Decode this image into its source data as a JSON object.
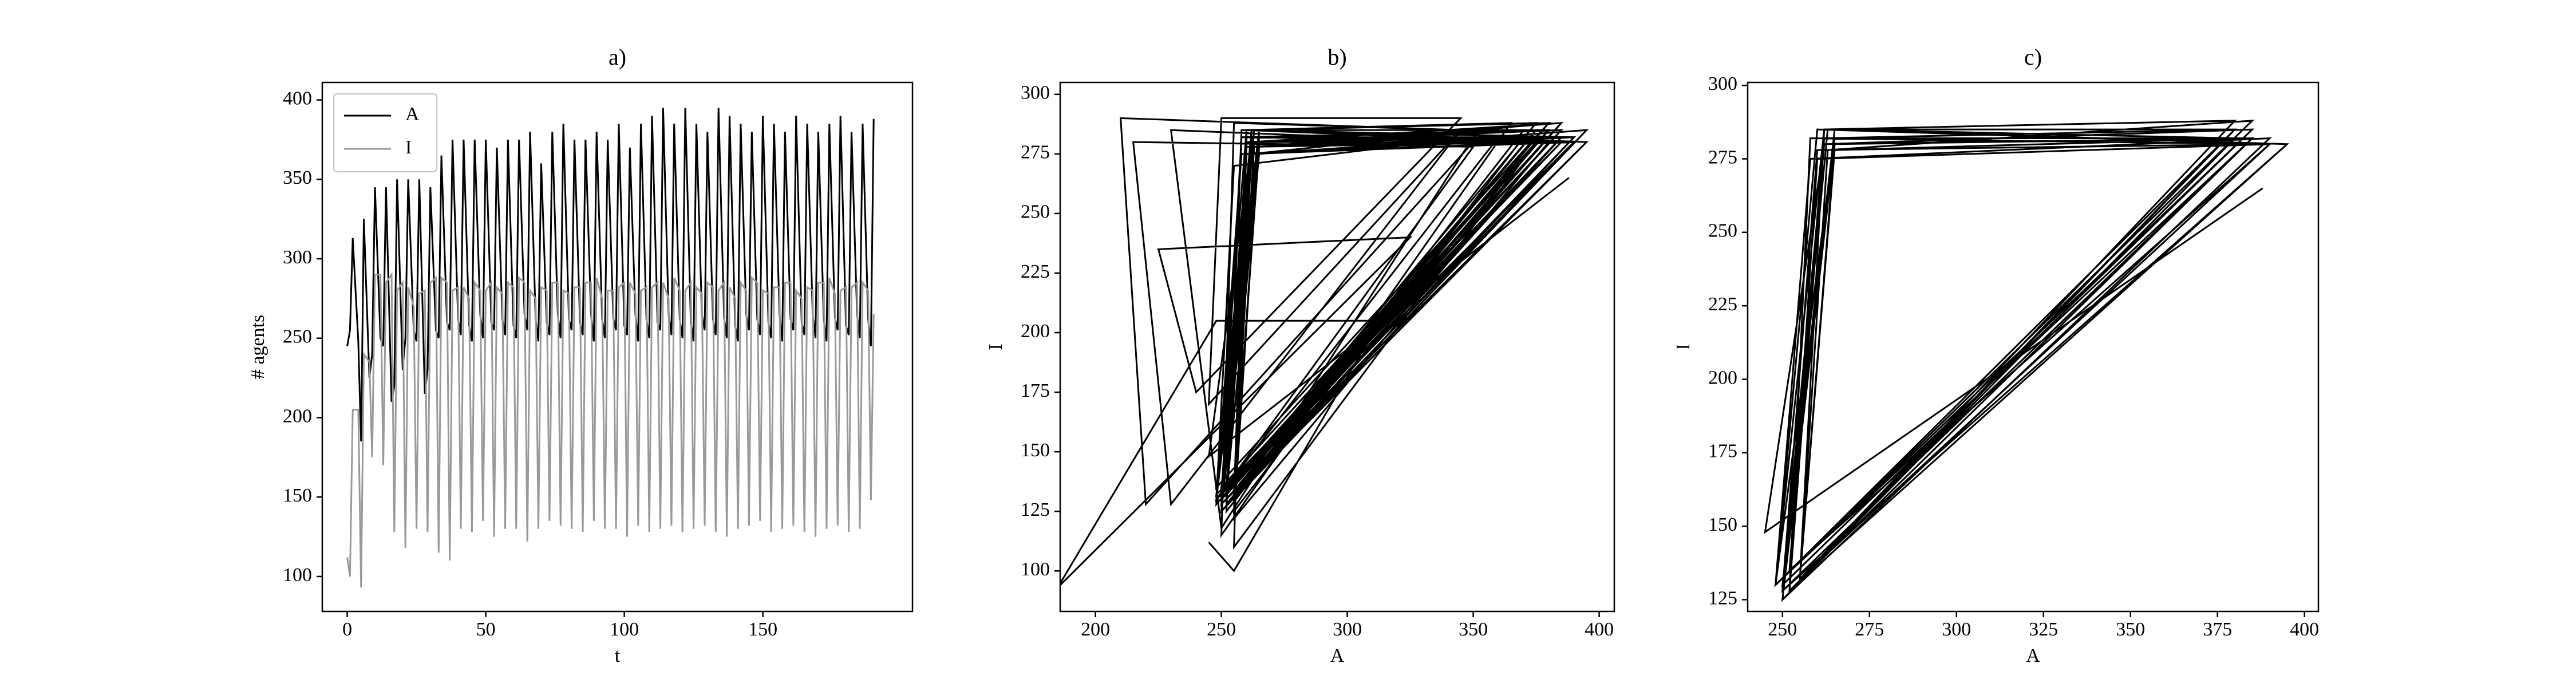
{
  "chart_data": [
    {
      "type": "line",
      "title": "a)",
      "xlabel": "t",
      "ylabel": "# agents",
      "x": [
        0,
        1,
        2,
        4,
        5,
        6,
        8,
        9,
        10,
        12,
        13,
        14,
        16,
        17,
        18,
        20,
        21,
        22,
        24,
        25,
        26,
        28,
        29,
        30,
        32,
        33,
        34,
        36,
        37,
        38,
        40,
        41,
        42,
        44,
        45,
        46,
        48,
        49,
        50,
        52,
        53,
        54,
        56,
        57,
        58,
        60,
        61,
        62,
        64,
        65,
        66,
        68,
        69,
        70,
        72,
        73,
        74,
        76,
        77,
        78,
        80,
        81,
        82,
        84,
        85,
        86,
        88,
        89,
        90,
        92,
        93,
        94,
        96,
        97,
        98,
        100,
        101,
        102,
        104,
        105,
        106,
        108,
        109,
        110,
        112,
        113,
        114,
        116,
        117,
        118,
        120,
        121,
        122,
        124,
        125,
        126,
        128,
        129,
        130,
        132,
        133,
        134,
        136,
        137,
        138,
        140,
        141,
        142,
        144,
        145,
        146,
        148,
        149,
        150,
        152,
        153,
        154,
        156,
        157,
        158,
        160,
        161,
        162,
        164,
        165,
        166,
        168,
        169,
        170,
        172,
        173,
        174,
        176,
        177,
        178,
        180,
        181,
        182,
        184,
        185,
        186,
        188,
        189,
        190
      ],
      "series": [
        {
          "name": "A",
          "color": "#000000",
          "values": [
            245,
            255,
            313,
            248,
            185,
            325,
            225,
            240,
            345,
            250,
            245,
            345,
            210,
            220,
            350,
            230,
            250,
            350,
            255,
            248,
            350,
            215,
            230,
            345,
            255,
            250,
            365,
            260,
            255,
            375,
            262,
            252,
            375,
            258,
            248,
            375,
            265,
            250,
            375,
            260,
            255,
            370,
            262,
            252,
            375,
            258,
            250,
            375,
            265,
            255,
            380,
            262,
            248,
            360,
            260,
            252,
            380,
            265,
            250,
            385,
            262,
            255,
            375,
            260,
            252,
            375,
            265,
            248,
            380,
            262,
            250,
            375,
            263,
            255,
            385,
            258,
            252,
            370,
            265,
            248,
            385,
            262,
            250,
            390,
            260,
            255,
            395,
            265,
            252,
            385,
            262,
            250,
            395,
            260,
            248,
            385,
            265,
            255,
            380,
            262,
            252,
            395,
            263,
            250,
            390,
            258,
            248,
            385,
            265,
            255,
            380,
            262,
            252,
            390,
            260,
            250,
            385,
            265,
            248,
            380,
            262,
            255,
            390,
            260,
            252,
            385,
            265,
            250,
            380,
            262,
            248,
            385,
            263,
            255,
            390,
            258,
            252,
            380,
            265,
            250,
            385,
            262,
            245,
            388
          ]
        },
        {
          "name": "I",
          "color": "#999999",
          "values": [
            112,
            100,
            205,
            205,
            93,
            240,
            235,
            175,
            290,
            290,
            170,
            285,
            290,
            128,
            280,
            285,
            118,
            282,
            270,
            130,
            278,
            280,
            128,
            285,
            288,
            115,
            288,
            285,
            110,
            280,
            282,
            130,
            282,
            275,
            128,
            285,
            280,
            135,
            280,
            285,
            125,
            282,
            278,
            130,
            285,
            282,
            130,
            288,
            285,
            122,
            280,
            275,
            130,
            282,
            280,
            135,
            285,
            285,
            132,
            280,
            278,
            130,
            282,
            282,
            128,
            285,
            285,
            135,
            288,
            275,
            130,
            280,
            280,
            130,
            282,
            285,
            125,
            285,
            278,
            132,
            280,
            282,
            128,
            282,
            285,
            130,
            285,
            275,
            132,
            288,
            280,
            128,
            280,
            285,
            130,
            282,
            278,
            132,
            285,
            282,
            128,
            280,
            285,
            125,
            282,
            275,
            130,
            285,
            280,
            132,
            288,
            285,
            135,
            280,
            278,
            128,
            282,
            282,
            130,
            285,
            285,
            132,
            280,
            275,
            128,
            282,
            280,
            125,
            285,
            285,
            130,
            288,
            278,
            132,
            280,
            282,
            128,
            282,
            285,
            130,
            285,
            280,
            148,
            265
          ]
        }
      ],
      "xlim": [
        -9,
        204
      ],
      "ylim": [
        78,
        411
      ],
      "xticks": [
        0,
        50,
        100,
        150
      ],
      "yticks": [
        100,
        150,
        200,
        250,
        300,
        350,
        400
      ],
      "legend": "upper left"
    },
    {
      "type": "phase",
      "title": "b)",
      "xlabel": "A",
      "ylabel": "I",
      "color": "#000000",
      "x": [
        245,
        255,
        313,
        248,
        185,
        325,
        225,
        240,
        345,
        250,
        245,
        345,
        210,
        220,
        350,
        230,
        250,
        350,
        255,
        248,
        350,
        215,
        230,
        345,
        255,
        250,
        365,
        260,
        255,
        375,
        262,
        252,
        375,
        258,
        248,
        375,
        265,
        250,
        375,
        260,
        255,
        370,
        262,
        252,
        375,
        258,
        250,
        375,
        265,
        255,
        380,
        262,
        248,
        360,
        260,
        252,
        380,
        265,
        250,
        385,
        262,
        255,
        375,
        260,
        252,
        375,
        265,
        248,
        380,
        262,
        250,
        375,
        263,
        255,
        385,
        258,
        252,
        370,
        265,
        248,
        385,
        262,
        250,
        390,
        260,
        255,
        395,
        265,
        252,
        385,
        262,
        250,
        395,
        260,
        248,
        385,
        265,
        255,
        380,
        262,
        252,
        395,
        263,
        250,
        390,
        258,
        248,
        385,
        265,
        255,
        380,
        262,
        252,
        390,
        260,
        250,
        385,
        265,
        248,
        380,
        262,
        255,
        390,
        260,
        252,
        385,
        265,
        250,
        380,
        262,
        248,
        385,
        263,
        255,
        390,
        258,
        252,
        380,
        265,
        250,
        385,
        262,
        245,
        388
      ],
      "y": [
        112,
        100,
        205,
        205,
        93,
        240,
        235,
        175,
        290,
        290,
        170,
        285,
        290,
        128,
        280,
        285,
        118,
        282,
        270,
        130,
        278,
        280,
        128,
        285,
        288,
        115,
        288,
        285,
        110,
        280,
        282,
        130,
        282,
        275,
        128,
        285,
        280,
        135,
        280,
        285,
        125,
        282,
        278,
        130,
        285,
        282,
        130,
        288,
        285,
        122,
        280,
        275,
        130,
        282,
        280,
        135,
        285,
        285,
        132,
        280,
        278,
        130,
        282,
        282,
        128,
        285,
        285,
        135,
        288,
        275,
        130,
        280,
        280,
        130,
        282,
        285,
        125,
        285,
        278,
        132,
        280,
        282,
        128,
        282,
        285,
        130,
        285,
        275,
        132,
        288,
        280,
        128,
        280,
        285,
        130,
        282,
        278,
        132,
        285,
        282,
        128,
        280,
        285,
        125,
        282,
        275,
        130,
        285,
        280,
        132,
        288,
        285,
        135,
        280,
        278,
        128,
        282,
        282,
        130,
        285,
        285,
        132,
        280,
        275,
        128,
        282,
        280,
        125,
        285,
        285,
        130,
        288,
        278,
        132,
        280,
        282,
        128,
        282,
        285,
        130,
        285,
        280,
        148,
        265
      ],
      "xlim": [
        186,
        406
      ],
      "ylim": [
        83,
        305
      ],
      "xticks": [
        200,
        250,
        300,
        350,
        400
      ],
      "yticks": [
        100,
        125,
        150,
        175,
        200,
        225,
        250,
        275,
        300
      ]
    },
    {
      "type": "phase",
      "title": "c)",
      "xlabel": "A",
      "ylabel": "I",
      "color": "#000000",
      "x": [
        262,
        250,
        395,
        260,
        248,
        385,
        265,
        255,
        380,
        262,
        252,
        395,
        263,
        250,
        390,
        258,
        248,
        385,
        265,
        255,
        380,
        262,
        252,
        390,
        260,
        250,
        385,
        265,
        248,
        380,
        262,
        255,
        390,
        260,
        252,
        385,
        265,
        250,
        380,
        262,
        248,
        385,
        263,
        255,
        390,
        258,
        252,
        380,
        265,
        250,
        385,
        262,
        245,
        388
      ],
      "y": [
        280,
        128,
        280,
        285,
        130,
        282,
        278,
        132,
        285,
        282,
        128,
        280,
        285,
        125,
        282,
        275,
        130,
        285,
        280,
        132,
        288,
        285,
        135,
        280,
        278,
        128,
        282,
        282,
        130,
        285,
        285,
        132,
        280,
        275,
        128,
        282,
        280,
        125,
        285,
        285,
        130,
        288,
        278,
        132,
        280,
        282,
        128,
        282,
        285,
        130,
        285,
        280,
        148,
        265
      ],
      "xlim": [
        240,
        404
      ],
      "ylim": [
        121,
        301
      ],
      "xticks": [
        250,
        275,
        300,
        325,
        350,
        375,
        400
      ],
      "yticks": [
        125,
        150,
        175,
        200,
        225,
        250,
        275,
        300
      ]
    }
  ]
}
